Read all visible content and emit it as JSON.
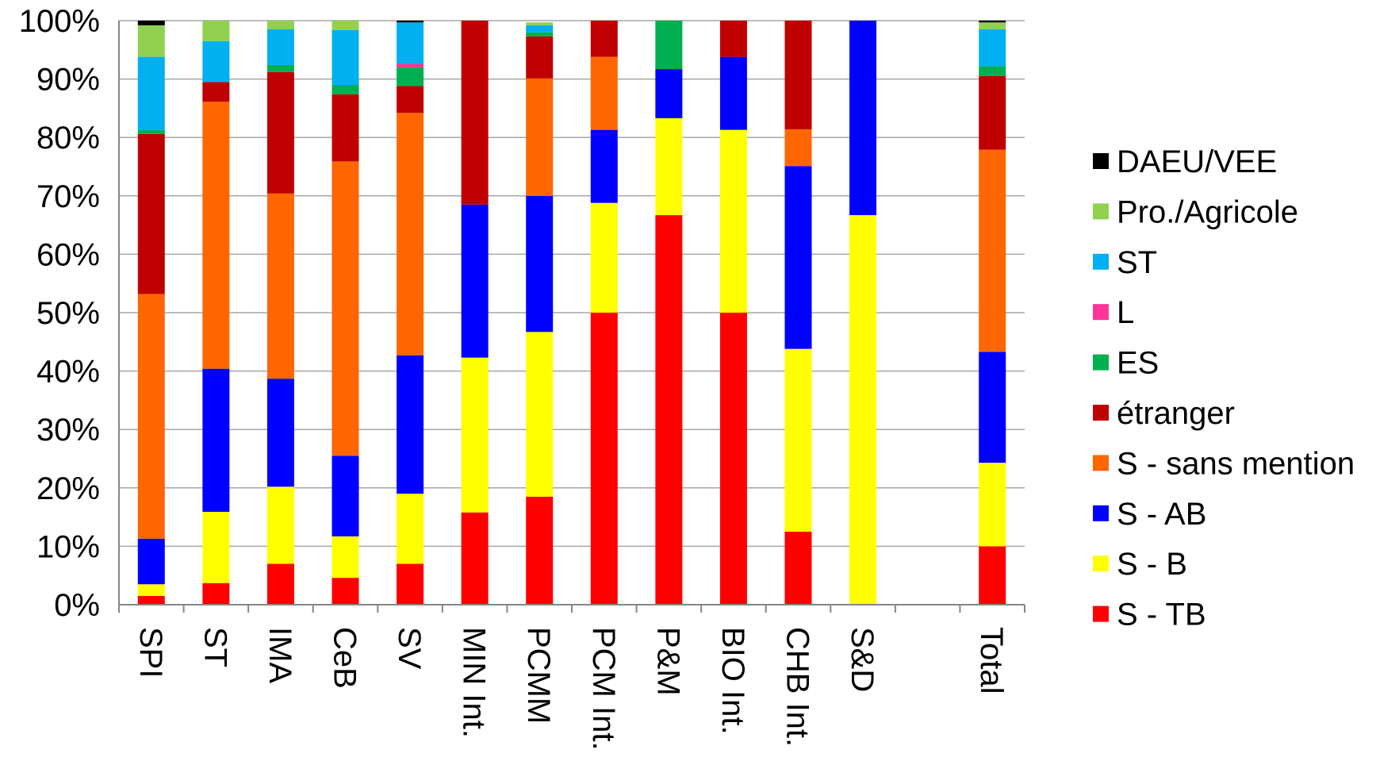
{
  "chart_data": {
    "type": "bar",
    "stacked": true,
    "percent": true,
    "title": "",
    "xlabel": "",
    "ylabel": "",
    "ylim": [
      0,
      100
    ],
    "y_ticks": [
      "0%",
      "10%",
      "20%",
      "30%",
      "40%",
      "50%",
      "60%",
      "70%",
      "80%",
      "90%",
      "100%"
    ],
    "grid": "horizontal",
    "legend_position": "right",
    "categories": [
      "SPI",
      "ST",
      "IMA",
      "CeB",
      "SV",
      "MIN Int.",
      "PCMM",
      "PCM Int.",
      "P&M",
      "BIO Int.",
      "CHB Int.",
      "S&D",
      "",
      "Total"
    ],
    "series": [
      {
        "name": "S - TB",
        "color": "#ff0000",
        "values": [
          1.5,
          3.7,
          7.0,
          4.6,
          7.0,
          15.8,
          18.5,
          50.0,
          66.7,
          50.0,
          12.5,
          0,
          0,
          10.0
        ]
      },
      {
        "name": "S - B",
        "color": "#ffff00",
        "values": [
          2.0,
          12.2,
          13.2,
          7.1,
          12.0,
          26.5,
          28.2,
          18.8,
          16.6,
          31.3,
          31.3,
          66.7,
          0,
          14.3
        ]
      },
      {
        "name": "S - AB",
        "color": "#0000ff",
        "values": [
          7.8,
          24.5,
          18.5,
          13.8,
          23.7,
          26.2,
          23.3,
          12.5,
          8.4,
          12.5,
          31.3,
          33.3,
          0,
          19.0
        ]
      },
      {
        "name": "S - sans mention",
        "color": "#ff6600",
        "values": [
          41.9,
          45.7,
          31.7,
          50.4,
          41.5,
          0,
          20.1,
          12.5,
          0,
          0,
          6.3,
          0,
          0,
          34.6
        ]
      },
      {
        "name": "étranger",
        "color": "#c00000",
        "values": [
          27.4,
          3.4,
          20.8,
          11.5,
          4.6,
          31.5,
          7.2,
          6.2,
          0,
          6.2,
          18.6,
          0,
          0,
          12.6
        ]
      },
      {
        "name": "ES",
        "color": "#00b050",
        "values": [
          0.7,
          0,
          1.2,
          1.6,
          3.2,
          0,
          0.7,
          0,
          8.3,
          0,
          0,
          0,
          0,
          1.7
        ]
      },
      {
        "name": "L",
        "color": "#ff3399",
        "values": [
          0,
          0,
          0,
          0,
          0.6,
          0,
          0,
          0,
          0,
          0,
          0,
          0,
          0,
          0
        ]
      },
      {
        "name": "ST",
        "color": "#00b0f0",
        "values": [
          12.5,
          7.0,
          6.1,
          9.4,
          7.1,
          0,
          1.2,
          0,
          0,
          0,
          0,
          0,
          0,
          6.3
        ]
      },
      {
        "name": "Pro./Agricole",
        "color": "#92d050",
        "values": [
          5.4,
          3.5,
          1.5,
          1.6,
          0,
          0,
          0.5,
          0,
          0,
          0,
          0,
          0,
          0,
          1.2
        ]
      },
      {
        "name": "DAEU/VEE",
        "color": "#000000",
        "values": [
          0.8,
          0,
          0,
          0,
          0.3,
          0,
          0,
          0,
          0,
          0,
          0,
          0,
          0,
          0.3
        ]
      }
    ]
  }
}
